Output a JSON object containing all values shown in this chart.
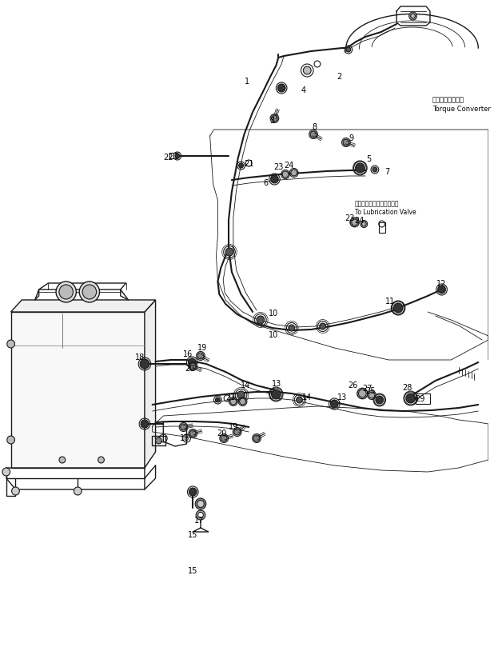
{
  "bg_color": "#ffffff",
  "line_color": "#000000",
  "fig_width": 6.28,
  "fig_height": 8.09,
  "dpi": 100,
  "labels": {
    "torque_converter_jp": "トルクコンバータ",
    "torque_converter_en": "Torque Converter",
    "lubrication_jp": "ルブリケーションバルブへ",
    "lubrication_en": "To Lubrication Valve"
  }
}
